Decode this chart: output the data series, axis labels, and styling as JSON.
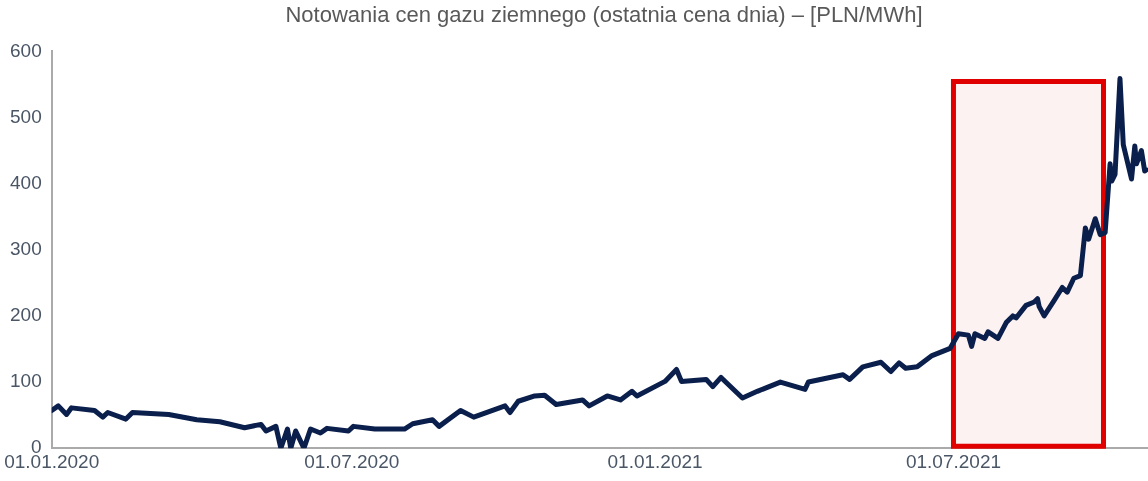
{
  "chart_data": {
    "type": "line",
    "title": "Notowania cen gazu ziemnego (ostatnia cena dnia) – [PLN/MWh]",
    "xlim": [
      "2020-01-01",
      "2021-10-27"
    ],
    "xticks": [
      {
        "value": "2020-01-01",
        "label": "01.01.2020"
      },
      {
        "value": "2020-07-01",
        "label": "01.07.2020"
      },
      {
        "value": "2021-01-01",
        "label": "01.01.2021"
      },
      {
        "value": "2021-07-01",
        "label": "01.07.2021"
      }
    ],
    "ylim": [
      0,
      600
    ],
    "yticks": [
      0,
      100,
      200,
      300,
      400,
      500,
      600
    ],
    "grid": false,
    "legend": false,
    "bands": [
      {
        "axis": "x",
        "from": "2021-07-01",
        "to": "2021-09-30",
        "color": "#e00000"
      }
    ],
    "series": [
      {
        "color": "#0a1f4b",
        "x": [
          "2020-01-01",
          "2020-01-05",
          "2020-01-10",
          "2020-01-13",
          "2020-01-27",
          "2020-02-01",
          "2020-02-04",
          "2020-02-15",
          "2020-02-19",
          "2020-03-12",
          "2020-03-29",
          "2020-04-12",
          "2020-04-27",
          "2020-05-07",
          "2020-05-10",
          "2020-05-16",
          "2020-05-19",
          "2020-05-23",
          "2020-05-25",
          "2020-05-28",
          "2020-06-02",
          "2020-06-06",
          "2020-06-12",
          "2020-06-16",
          "2020-06-29",
          "2020-07-02",
          "2020-07-15",
          "2020-08-02",
          "2020-08-07",
          "2020-08-19",
          "2020-08-23",
          "2020-09-05",
          "2020-09-13",
          "2020-10-02",
          "2020-10-05",
          "2020-10-10",
          "2020-10-20",
          "2020-10-26",
          "2020-11-02",
          "2020-11-18",
          "2020-11-22",
          "2020-12-03",
          "2020-12-11",
          "2020-12-18",
          "2020-12-21",
          "2021-01-07",
          "2021-01-14",
          "2021-01-17",
          "2021-02-01",
          "2021-02-05",
          "2021-02-10",
          "2021-02-23",
          "2021-03-04",
          "2021-03-18",
          "2021-04-02",
          "2021-04-04",
          "2021-04-25",
          "2021-04-29",
          "2021-05-07",
          "2021-05-18",
          "2021-05-24",
          "2021-05-29",
          "2021-06-02",
          "2021-06-09",
          "2021-06-18",
          "2021-06-29",
          "2021-07-04",
          "2021-07-10",
          "2021-07-12",
          "2021-07-14",
          "2021-07-20",
          "2021-07-22",
          "2021-07-28",
          "2021-08-02",
          "2021-08-06",
          "2021-08-08",
          "2021-08-14",
          "2021-08-19",
          "2021-08-21",
          "2021-08-22",
          "2021-08-25",
          "2021-08-31",
          "2021-09-05",
          "2021-09-08",
          "2021-09-12",
          "2021-09-16",
          "2021-09-19",
          "2021-09-21",
          "2021-09-25",
          "2021-09-28",
          "2021-10-01",
          "2021-10-04",
          "2021-10-05",
          "2021-10-07",
          "2021-10-10",
          "2021-10-12",
          "2021-10-17",
          "2021-10-19",
          "2021-10-20",
          "2021-10-23",
          "2021-10-25",
          "2021-10-26"
        ],
        "values": [
          57,
          64,
          51,
          61,
          57,
          47,
          54,
          44,
          54,
          51,
          43,
          40,
          31,
          36,
          26,
          33,
          0,
          29,
          0,
          26,
          0,
          29,
          23,
          30,
          26,
          33,
          29,
          29,
          37,
          43,
          33,
          57,
          47,
          64,
          54,
          71,
          79,
          80,
          66,
          73,
          64,
          79,
          73,
          86,
          79,
          101,
          119,
          101,
          104,
          93,
          107,
          76,
          86,
          100,
          89,
          100,
          111,
          104,
          123,
          130,
          116,
          129,
          121,
          123,
          140,
          151,
          173,
          171,
          154,
          173,
          166,
          176,
          166,
          190,
          200,
          197,
          216,
          221,
          226,
          214,
          200,
          223,
          243,
          236,
          257,
          261,
          333,
          316,
          347,
          323,
          326,
          430,
          404,
          414,
          559,
          459,
          407,
          457,
          430,
          450,
          419,
          421
        ]
      }
    ]
  }
}
